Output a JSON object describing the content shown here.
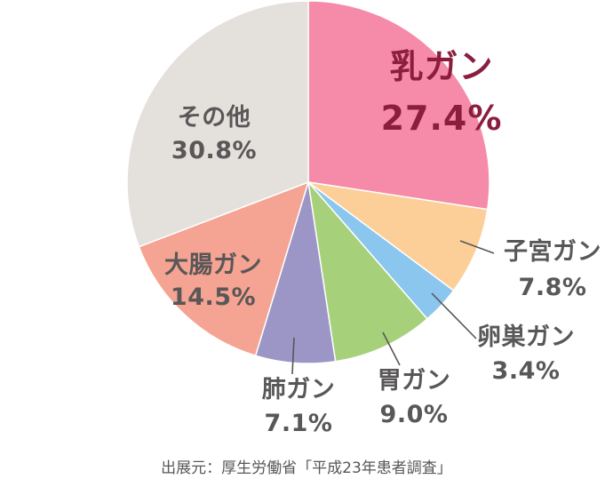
{
  "chart_data": {
    "type": "pie",
    "title": "",
    "start": "top, clockwise",
    "slices": [
      {
        "label": "乳ガン",
        "value": 27.4,
        "text": "27.4%",
        "color": "#f58ba8"
      },
      {
        "label": "子宮ガン",
        "value": 7.8,
        "text": "7.8%",
        "color": "#fccf99"
      },
      {
        "label": "卵巣ガン",
        "value": 3.4,
        "text": "3.4%",
        "color": "#8ac6ee"
      },
      {
        "label": "胃ガン",
        "value": 9.0,
        "text": "9.0%",
        "color": "#a6d07a"
      },
      {
        "label": "肺ガン",
        "value": 7.1,
        "text": "7.1%",
        "color": "#9b96c6"
      },
      {
        "label": "大腸ガン",
        "value": 14.5,
        "text": "14.5%",
        "color": "#f5a392"
      },
      {
        "label": "その他",
        "value": 30.8,
        "text": "30.8%",
        "color": "#e4e0dc"
      }
    ],
    "highlight_color": "#8b1e3f",
    "source": "出展元：厚生労働省「平成23年患者調査」"
  }
}
